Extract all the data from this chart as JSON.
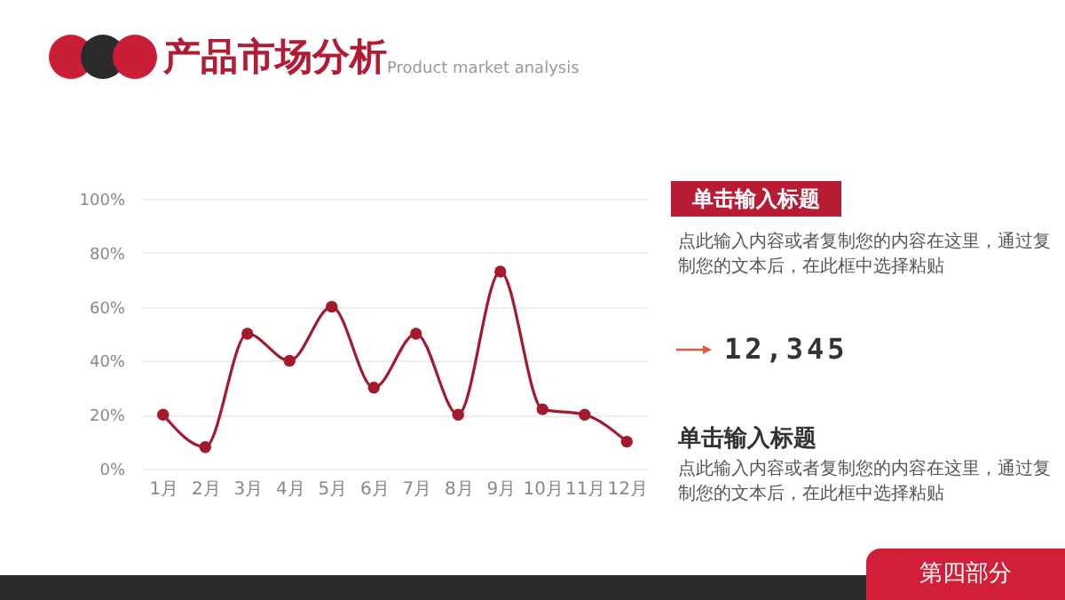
{
  "chart_data": {
    "type": "line",
    "title": "产品市场分析",
    "subtitle": "Product market analysis",
    "categories": [
      "1月",
      "2月",
      "3月",
      "4月",
      "5月",
      "6月",
      "7月",
      "8月",
      "9月",
      "10月",
      "11月",
      "12月"
    ],
    "series": [
      {
        "color": "#a31a2e",
        "values": [
          20,
          8,
          50,
          40,
          60,
          30,
          50,
          20,
          73,
          22,
          20,
          10
        ]
      }
    ],
    "ylim": [
      0,
      100
    ],
    "yticks": [
      {
        "value": 0,
        "label": "0%"
      },
      {
        "value": 20,
        "label": "20%"
      },
      {
        "value": 40,
        "label": "40%"
      },
      {
        "value": 60,
        "label": "60%"
      },
      {
        "value": 80,
        "label": "80%"
      },
      {
        "value": 100,
        "label": "100%"
      }
    ],
    "grid": "y",
    "marker": "circle",
    "line_style": "solid",
    "legend": false,
    "annotations": [
      "单击输入标题",
      "点此输入内容或者复制您的内容在这里，通过复制您的文本后，在此框中选择粘贴",
      "12,345",
      "单击输入标题",
      "点此输入内容或者复制您的内容在这里，通过复制您的文本后，在此框中选择粘贴",
      "第四部分"
    ]
  }
}
